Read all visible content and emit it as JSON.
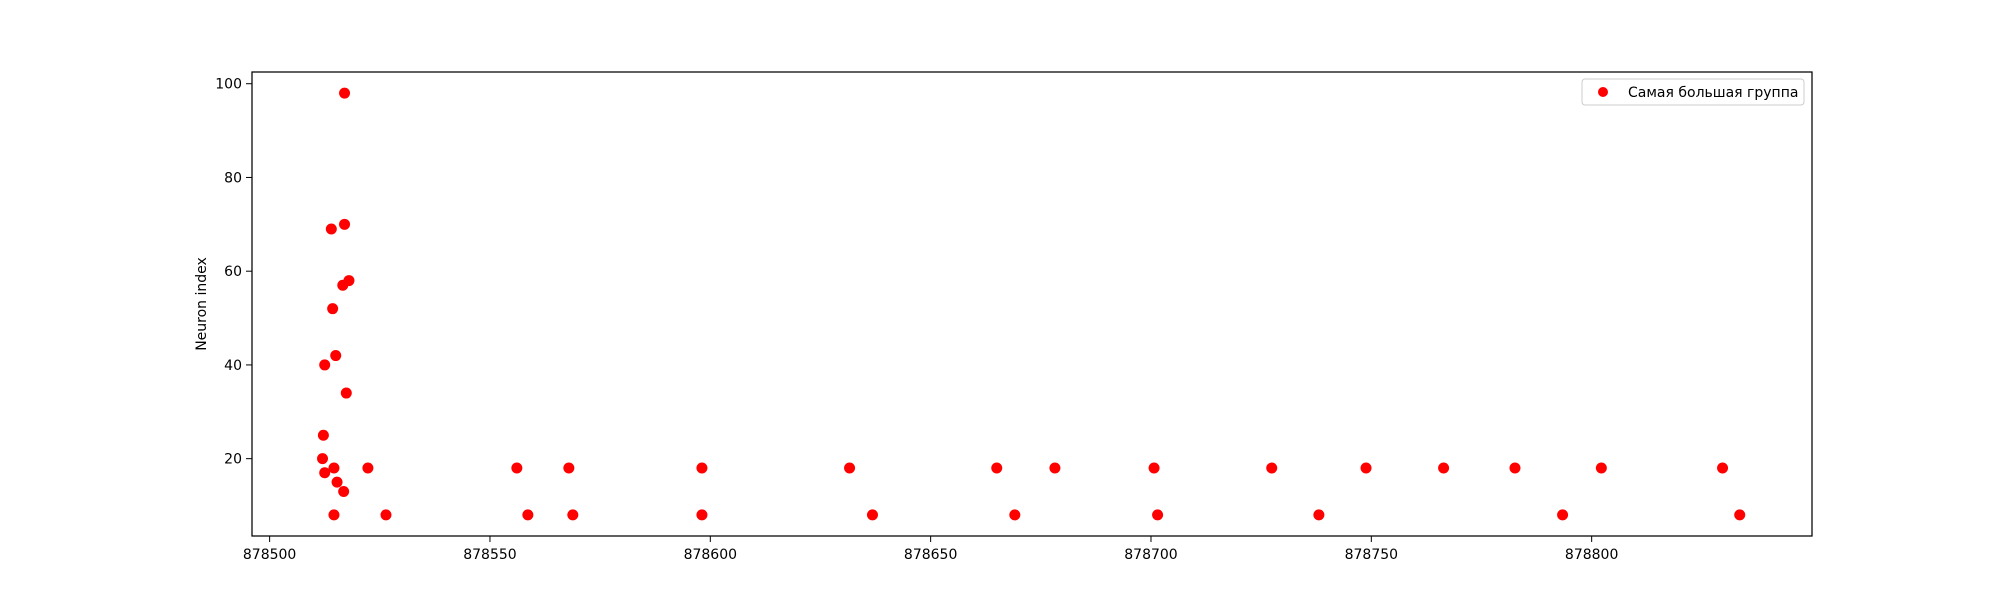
{
  "chart_data": {
    "type": "scatter",
    "title": "",
    "xlabel": "",
    "ylabel": "Neuron index",
    "xlim": [
      878496,
      878850
    ],
    "ylim": [
      3.5,
      102.5
    ],
    "xticks": [
      878500,
      878550,
      878600,
      878650,
      878700,
      878750,
      878800
    ],
    "yticks": [
      20,
      40,
      60,
      80,
      100
    ],
    "grid": false,
    "legend_position": "top-right",
    "series": [
      {
        "name": "Самая большая группа",
        "color": "#ff0000",
        "marker": "circle",
        "points": [
          {
            "x": 878512.0,
            "y": 20
          },
          {
            "x": 878512.2,
            "y": 25
          },
          {
            "x": 878512.5,
            "y": 17
          },
          {
            "x": 878512.5,
            "y": 40
          },
          {
            "x": 878514.0,
            "y": 69
          },
          {
            "x": 878514.3,
            "y": 52
          },
          {
            "x": 878514.6,
            "y": 18
          },
          {
            "x": 878514.6,
            "y": 8
          },
          {
            "x": 878515.0,
            "y": 42
          },
          {
            "x": 878515.3,
            "y": 15
          },
          {
            "x": 878516.6,
            "y": 57
          },
          {
            "x": 878516.8,
            "y": 13
          },
          {
            "x": 878517.0,
            "y": 98
          },
          {
            "x": 878517.0,
            "y": 70
          },
          {
            "x": 878517.4,
            "y": 34
          },
          {
            "x": 878518.0,
            "y": 58
          },
          {
            "x": 878522.3,
            "y": 18
          },
          {
            "x": 878526.4,
            "y": 8
          },
          {
            "x": 878556.1,
            "y": 18
          },
          {
            "x": 878558.6,
            "y": 8
          },
          {
            "x": 878567.9,
            "y": 18
          },
          {
            "x": 878568.8,
            "y": 8
          },
          {
            "x": 878598.1,
            "y": 18
          },
          {
            "x": 878598.1,
            "y": 8
          },
          {
            "x": 878631.6,
            "y": 18
          },
          {
            "x": 878636.8,
            "y": 8
          },
          {
            "x": 878665.0,
            "y": 18
          },
          {
            "x": 878669.1,
            "y": 8
          },
          {
            "x": 878678.2,
            "y": 18
          },
          {
            "x": 878700.7,
            "y": 18
          },
          {
            "x": 878701.5,
            "y": 8
          },
          {
            "x": 878727.4,
            "y": 18
          },
          {
            "x": 878738.1,
            "y": 8
          },
          {
            "x": 878748.8,
            "y": 18
          },
          {
            "x": 878766.4,
            "y": 18
          },
          {
            "x": 878782.6,
            "y": 18
          },
          {
            "x": 878793.4,
            "y": 8
          },
          {
            "x": 878802.2,
            "y": 18
          },
          {
            "x": 878829.7,
            "y": 18
          },
          {
            "x": 878833.6,
            "y": 8
          }
        ]
      }
    ]
  }
}
